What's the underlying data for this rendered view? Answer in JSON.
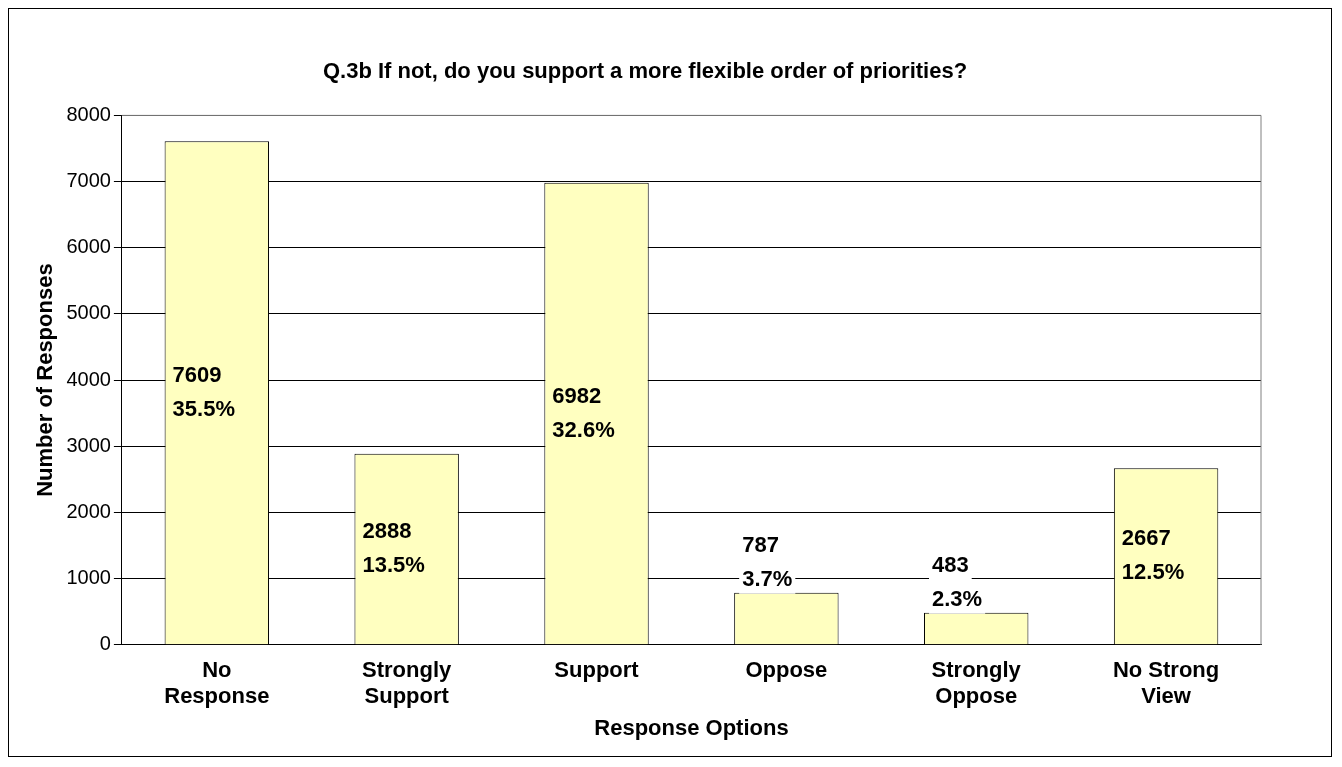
{
  "chart_data": {
    "type": "bar",
    "title": "Q.3b If not, do you support a more flexible order of priorities?",
    "xlabel": "Response Options",
    "ylabel": "Number of Responses",
    "categories": [
      "No Response",
      "Strongly Support",
      "Support",
      "Oppose",
      "Strongly Oppose",
      "No Strong View"
    ],
    "values": [
      7609,
      2888,
      6982,
      787,
      483,
      2667
    ],
    "value_labels": [
      "7609\n35.5%",
      "2888\n13.5%",
      "6982\n32.6%",
      "787\n3.7%",
      "483\n2.3%",
      "2667\n12.5%"
    ],
    "color": "#ffffc0",
    "ylim": [
      0,
      8000
    ],
    "yticks": [
      0,
      1000,
      2000,
      3000,
      4000,
      5000,
      6000,
      7000,
      8000
    ],
    "grid": "y",
    "legend": false
  }
}
